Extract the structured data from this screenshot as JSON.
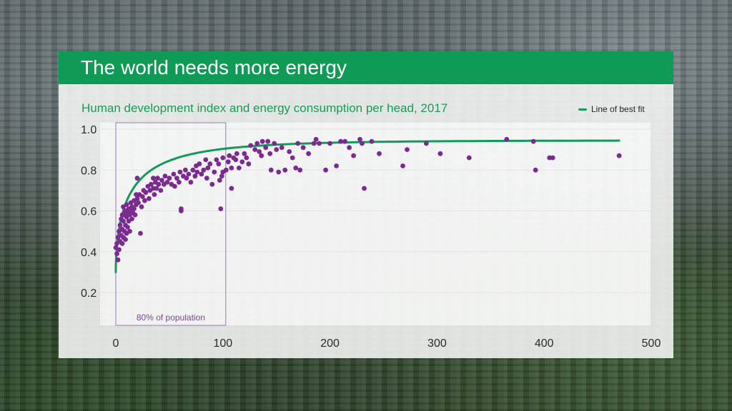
{
  "header": {
    "title": "The world needs more energy"
  },
  "colors": {
    "header_bg": "#0f9a55",
    "subtitle": "#1a9b55",
    "fit_line": "#139a5a",
    "points": "#7b2a8f",
    "region_border": "#9a7ab8"
  },
  "chart_data": {
    "type": "scatter",
    "title": "Human development index and energy consumption per head, 2017",
    "xlabel": "",
    "ylabel": "",
    "xlim": [
      0,
      500
    ],
    "ylim": [
      0.1,
      1.0
    ],
    "x_ticks": [
      0,
      100,
      200,
      300,
      400,
      500
    ],
    "x_tick_labels": [
      "0",
      "100",
      "200",
      "300",
      "400",
      "500"
    ],
    "y_ticks": [
      0.2,
      0.4,
      0.6,
      0.8,
      1.0
    ],
    "y_tick_labels": [
      "0.2",
      "0.4",
      "0.6",
      "0.8",
      "1.0"
    ],
    "grid": "horizontal",
    "legend": {
      "position": "top-right",
      "entries": [
        "Line of best fit"
      ]
    },
    "annotations": [
      {
        "label": "80% of population",
        "x_range": [
          0,
          100
        ],
        "y_range": [
          0.1,
          1.0
        ]
      }
    ],
    "best_fit": {
      "name": "Line of best fit",
      "x_start": 0,
      "x_end": 470
    },
    "points": [
      [
        0,
        0.42
      ],
      [
        1,
        0.39
      ],
      [
        1,
        0.44
      ],
      [
        2,
        0.36
      ],
      [
        2,
        0.47
      ],
      [
        3,
        0.41
      ],
      [
        3,
        0.5
      ],
      [
        4,
        0.45
      ],
      [
        4,
        0.53
      ],
      [
        5,
        0.48
      ],
      [
        5,
        0.56
      ],
      [
        6,
        0.44
      ],
      [
        6,
        0.51
      ],
      [
        6,
        0.58
      ],
      [
        7,
        0.47
      ],
      [
        7,
        0.55
      ],
      [
        7,
        0.62
      ],
      [
        8,
        0.5
      ],
      [
        8,
        0.58
      ],
      [
        9,
        0.46
      ],
      [
        9,
        0.53
      ],
      [
        9,
        0.6
      ],
      [
        10,
        0.49
      ],
      [
        10,
        0.57
      ],
      [
        10,
        0.63
      ],
      [
        11,
        0.52
      ],
      [
        11,
        0.59
      ],
      [
        12,
        0.55
      ],
      [
        12,
        0.61
      ],
      [
        13,
        0.5
      ],
      [
        13,
        0.58
      ],
      [
        14,
        0.6
      ],
      [
        14,
        0.64
      ],
      [
        15,
        0.56
      ],
      [
        15,
        0.62
      ],
      [
        16,
        0.59
      ],
      [
        17,
        0.65
      ],
      [
        17,
        0.61
      ],
      [
        18,
        0.58
      ],
      [
        19,
        0.63
      ],
      [
        19,
        0.68
      ],
      [
        20,
        0.66
      ],
      [
        20,
        0.76
      ],
      [
        21,
        0.64
      ],
      [
        22,
        0.68
      ],
      [
        23,
        0.49
      ],
      [
        24,
        0.62
      ],
      [
        25,
        0.67
      ],
      [
        26,
        0.7
      ],
      [
        27,
        0.65
      ],
      [
        28,
        0.69
      ],
      [
        30,
        0.72
      ],
      [
        31,
        0.66
      ],
      [
        32,
        0.7
      ],
      [
        33,
        0.73
      ],
      [
        35,
        0.76
      ],
      [
        35,
        0.71
      ],
      [
        36,
        0.68
      ],
      [
        37,
        0.74
      ],
      [
        38,
        0.71
      ],
      [
        39,
        0.76
      ],
      [
        40,
        0.73
      ],
      [
        42,
        0.7
      ],
      [
        43,
        0.75
      ],
      [
        45,
        0.73
      ],
      [
        46,
        0.77
      ],
      [
        48,
        0.74
      ],
      [
        50,
        0.76
      ],
      [
        52,
        0.73
      ],
      [
        54,
        0.78
      ],
      [
        55,
        0.72
      ],
      [
        57,
        0.76
      ],
      [
        59,
        0.74
      ],
      [
        60,
        0.79
      ],
      [
        61,
        0.6
      ],
      [
        61,
        0.61
      ],
      [
        63,
        0.77
      ],
      [
        65,
        0.8
      ],
      [
        66,
        0.76
      ],
      [
        68,
        0.78
      ],
      [
        70,
        0.74
      ],
      [
        72,
        0.8
      ],
      [
        74,
        0.77
      ],
      [
        75,
        0.82
      ],
      [
        76,
        0.79
      ],
      [
        78,
        0.83
      ],
      [
        80,
        0.78
      ],
      [
        82,
        0.8
      ],
      [
        84,
        0.85
      ],
      [
        85,
        0.76
      ],
      [
        86,
        0.81
      ],
      [
        88,
        0.83
      ],
      [
        90,
        0.73
      ],
      [
        92,
        0.79
      ],
      [
        94,
        0.85
      ],
      [
        96,
        0.83
      ],
      [
        97,
        0.75
      ],
      [
        98,
        0.61
      ],
      [
        99,
        0.77
      ],
      [
        100,
        0.79
      ],
      [
        100,
        0.86
      ],
      [
        103,
        0.8
      ],
      [
        105,
        0.84
      ],
      [
        106,
        0.87
      ],
      [
        108,
        0.81
      ],
      [
        108,
        0.71
      ],
      [
        110,
        0.86
      ],
      [
        112,
        0.85
      ],
      [
        113,
        0.88
      ],
      [
        115,
        0.81
      ],
      [
        118,
        0.84
      ],
      [
        120,
        0.88
      ],
      [
        122,
        0.86
      ],
      [
        124,
        0.83
      ],
      [
        126,
        0.92
      ],
      [
        130,
        0.9
      ],
      [
        132,
        0.93
      ],
      [
        134,
        0.89
      ],
      [
        136,
        0.87
      ],
      [
        137,
        0.94
      ],
      [
        140,
        0.91
      ],
      [
        142,
        0.94
      ],
      [
        144,
        0.88
      ],
      [
        145,
        0.8
      ],
      [
        148,
        0.93
      ],
      [
        150,
        0.9
      ],
      [
        152,
        0.79
      ],
      [
        155,
        0.91
      ],
      [
        158,
        0.8
      ],
      [
        162,
        0.89
      ],
      [
        165,
        0.86
      ],
      [
        168,
        0.81
      ],
      [
        170,
        0.93
      ],
      [
        172,
        0.8
      ],
      [
        175,
        0.91
      ],
      [
        180,
        0.88
      ],
      [
        185,
        0.93
      ],
      [
        187,
        0.95
      ],
      [
        190,
        0.93
      ],
      [
        196,
        0.8
      ],
      [
        200,
        0.93
      ],
      [
        206,
        0.82
      ],
      [
        210,
        0.94
      ],
      [
        214,
        0.94
      ],
      [
        218,
        0.91
      ],
      [
        222,
        0.87
      ],
      [
        228,
        0.95
      ],
      [
        230,
        0.93
      ],
      [
        232,
        0.71
      ],
      [
        239,
        0.94
      ],
      [
        246,
        0.88
      ],
      [
        268,
        0.82
      ],
      [
        272,
        0.9
      ],
      [
        290,
        0.93
      ],
      [
        303,
        0.88
      ],
      [
        330,
        0.86
      ],
      [
        365,
        0.95
      ],
      [
        390,
        0.94
      ],
      [
        392,
        0.8
      ],
      [
        405,
        0.86
      ],
      [
        408,
        0.86
      ],
      [
        470,
        0.87
      ]
    ]
  }
}
